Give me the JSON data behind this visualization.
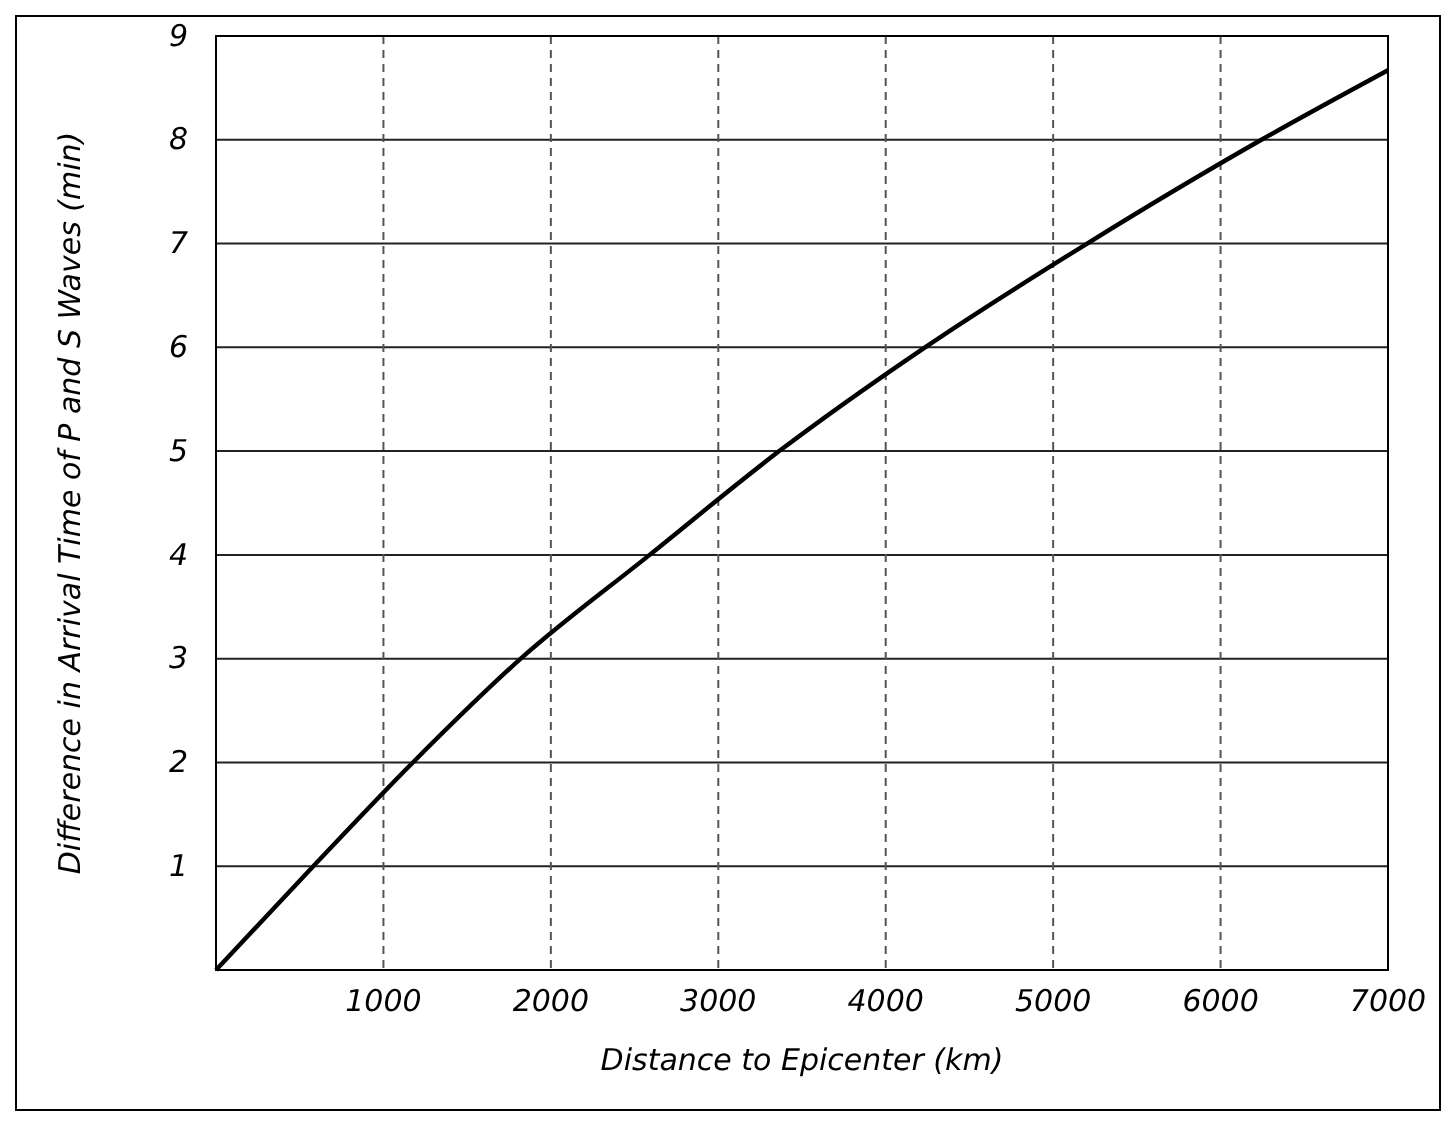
{
  "chart_data": {
    "type": "line",
    "xlabel": "Distance to Epicenter (km)",
    "ylabel": "Difference in Arrival Time of P and S Waves (min)",
    "x": [
      0,
      581,
      1176,
      1820,
      2590,
      3364,
      4235,
      5203,
      6244,
      7000
    ],
    "series": [
      {
        "color": "#000000",
        "values": [
          0,
          1,
          2,
          3,
          4,
          5,
          6,
          7,
          8,
          8.67
        ]
      }
    ],
    "xlim": [
      0,
      7000
    ],
    "ylim": [
      0,
      9
    ],
    "xticks": [
      {
        "value": 0,
        "label": null
      },
      1000,
      2000,
      3000,
      4000,
      5000,
      6000,
      7000
    ],
    "yticks": [
      {
        "value": 0,
        "label": null
      },
      1,
      2,
      3,
      4,
      5,
      6,
      7,
      8,
      9
    ],
    "grid": true,
    "marker": "none",
    "line_style": "solid"
  }
}
